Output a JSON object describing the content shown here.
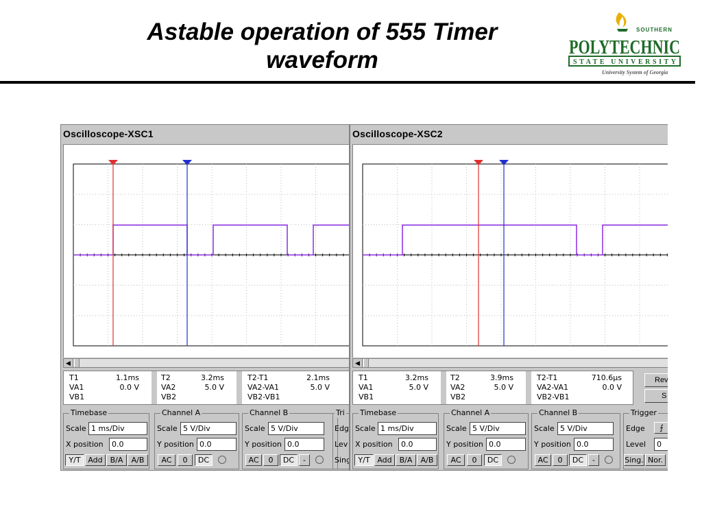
{
  "slide": {
    "title_line1": "Astable operation of 555 Timer",
    "title_line2": "waveform"
  },
  "logo": {
    "southern": "SOUTHERN",
    "polytechnic": "POLYTECHNIC",
    "state_university": "STATE UNIVERSITY",
    "system": "University System of Georgia",
    "color": "#1f6b2a"
  },
  "trace_color": "#8a2be2",
  "cursor1_color": "#e03030",
  "cursor2_color": "#2030d0",
  "scopes": [
    {
      "title": "Oscilloscope-XSC1",
      "readout": {
        "t1_label": "T1",
        "t1_value": "1.1ms",
        "va1_label": "VA1",
        "va1_value": "0.0 V",
        "vb1_label": "VB1",
        "t2_label": "T2",
        "t2_value": "3.2ms",
        "va2_label": "VA2",
        "va2_value": "5.0 V",
        "vb2_label": "VB2",
        "dt_label": "T2-T1",
        "dt_value": "2.1ms",
        "dva_label": "VA2-VA1",
        "dva_value": "5.0 V",
        "dvb_label": "VB2-VB1"
      },
      "timebase": {
        "title": "Timebase",
        "scale_label": "Scale",
        "scale_value": "1 ms/Div",
        "xpos_label": "X position",
        "xpos_value": "0.0",
        "buttons": [
          "Y/T",
          "Add",
          "B/A",
          "A/B"
        ]
      },
      "channel_a": {
        "title": "Channel A",
        "scale_label": "Scale",
        "scale_value": "5 V/Div",
        "ypos_label": "Y position",
        "ypos_value": "0.0",
        "buttons": [
          "AC",
          "0",
          "DC"
        ]
      },
      "channel_b": {
        "title": "Channel B",
        "scale_label": "Scale",
        "scale_value": "5 V/Div",
        "ypos_label": "Y position",
        "ypos_value": "0.0",
        "buttons": [
          "AC",
          "0",
          "DC",
          "-"
        ]
      },
      "trigger": {
        "title": "Tri",
        "edge_label": "Edg",
        "level_label": "Lev",
        "sing_label": "Sing"
      }
    },
    {
      "title": "Oscilloscope-XSC2",
      "readout": {
        "t1_label": "T1",
        "t1_value": "3.2ms",
        "va1_label": "VA1",
        "va1_value": "5.0 V",
        "vb1_label": "VB1",
        "t2_label": "T2",
        "t2_value": "3.9ms",
        "va2_label": "VA2",
        "va2_value": "5.0 V",
        "vb2_label": "VB2",
        "dt_label": "T2-T1",
        "dt_value": "710.6µs",
        "dva_label": "VA2-VA1",
        "dva_value": "0.0 V",
        "dvb_label": "VB2-VB1"
      },
      "side_buttons": [
        "Rev",
        "S"
      ],
      "timebase": {
        "title": "Timebase",
        "scale_label": "Scale",
        "scale_value": "1 ms/Div",
        "xpos_label": "X position",
        "xpos_value": "0.0",
        "buttons": [
          "Y/T",
          "Add",
          "B/A",
          "A/B"
        ]
      },
      "channel_a": {
        "title": "Channel A",
        "scale_label": "Scale",
        "scale_value": "5 V/Div",
        "ypos_label": "Y position",
        "ypos_value": "0.0",
        "buttons": [
          "AC",
          "0",
          "DC"
        ]
      },
      "channel_b": {
        "title": "Channel B",
        "scale_label": "Scale",
        "scale_value": "5 V/Div",
        "ypos_label": "Y position",
        "ypos_value": "0.0",
        "buttons": [
          "AC",
          "0",
          "DC",
          "-"
        ]
      },
      "trigger": {
        "title": "Trigger",
        "edge_label": "Edge",
        "level_label": "Level",
        "level_value": "0",
        "buttons": [
          "Sing.",
          "Nor."
        ]
      }
    }
  ]
}
